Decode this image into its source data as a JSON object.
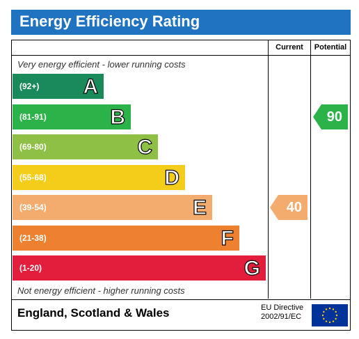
{
  "title": "Energy Efficiency Rating",
  "columns": {
    "current": "Current",
    "potential": "Potential"
  },
  "notes": {
    "top": "Very energy efficient - lower running costs",
    "bottom": "Not energy efficient - higher running costs"
  },
  "footer": {
    "region": "England, Scotland & Wales",
    "directive_line1": "EU Directive",
    "directive_line2": "2002/91/EC"
  },
  "chart_data": {
    "type": "bar",
    "bands": [
      {
        "range": "(92+)",
        "letter": "A",
        "color": "#1a8a5a"
      },
      {
        "range": "(81-91)",
        "letter": "B",
        "color": "#2bb34a"
      },
      {
        "range": "(69-80)",
        "letter": "C",
        "color": "#8dc045"
      },
      {
        "range": "(55-68)",
        "letter": "D",
        "color": "#f4cc1a"
      },
      {
        "range": "(39-54)",
        "letter": "E",
        "color": "#f3ac6d"
      },
      {
        "range": "(21-38)",
        "letter": "F",
        "color": "#ed8130"
      },
      {
        "range": "(1-20)",
        "letter": "G",
        "color": "#e31d3c"
      }
    ],
    "current": {
      "value": 40,
      "band": "E",
      "color": "#f3ac6d"
    },
    "potential": {
      "value": 90,
      "band": "B",
      "color": "#2bb34a"
    }
  }
}
